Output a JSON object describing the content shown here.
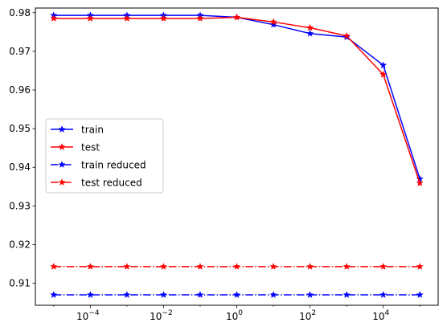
{
  "chart_data": {
    "type": "line",
    "title": "",
    "xlabel": "",
    "ylabel": "",
    "xscale": "log",
    "xlim": [
      3.16e-06,
      316000
    ],
    "ylim": [
      0.9043,
      0.9812
    ],
    "x": [
      1e-05,
      0.0001,
      0.001,
      0.01,
      0.1,
      1,
      10,
      100,
      1000,
      10000,
      100000
    ],
    "xtick_values": [
      0.0001,
      0.01,
      1,
      100,
      10000
    ],
    "xtick_exponents": [
      "−4",
      "−2",
      "0",
      "2",
      "4"
    ],
    "ytick_values": [
      0.91,
      0.92,
      0.93,
      0.94,
      0.95,
      0.96,
      0.97,
      0.98
    ],
    "ytick_labels": [
      "0.91",
      "0.92",
      "0.93",
      "0.94",
      "0.95",
      "0.96",
      "0.97",
      "0.98"
    ],
    "grid": false,
    "legend_position": "center-left",
    "series": [
      {
        "name": "train",
        "color": "#0000ff",
        "linestyle": "solid",
        "marker": "star",
        "values": [
          0.9793,
          0.9793,
          0.9793,
          0.9793,
          0.9793,
          0.9788,
          0.9769,
          0.9746,
          0.9737,
          0.9664,
          0.937
        ]
      },
      {
        "name": "test",
        "color": "#ff0000",
        "linestyle": "solid",
        "marker": "star",
        "values": [
          0.9785,
          0.9785,
          0.9785,
          0.9785,
          0.9785,
          0.9788,
          0.9776,
          0.9761,
          0.974,
          0.964,
          0.9359
        ]
      },
      {
        "name": "train reduced",
        "color": "#0000ff",
        "linestyle": "dashdot",
        "marker": "star",
        "values": [
          0.907,
          0.907,
          0.907,
          0.907,
          0.907,
          0.907,
          0.907,
          0.907,
          0.907,
          0.907,
          0.907
        ]
      },
      {
        "name": "test reduced",
        "color": "#ff0000",
        "linestyle": "dashdot",
        "marker": "star",
        "values": [
          0.9143,
          0.9143,
          0.9143,
          0.9143,
          0.9143,
          0.9143,
          0.9143,
          0.9143,
          0.9143,
          0.9143,
          0.9143
        ]
      }
    ]
  }
}
